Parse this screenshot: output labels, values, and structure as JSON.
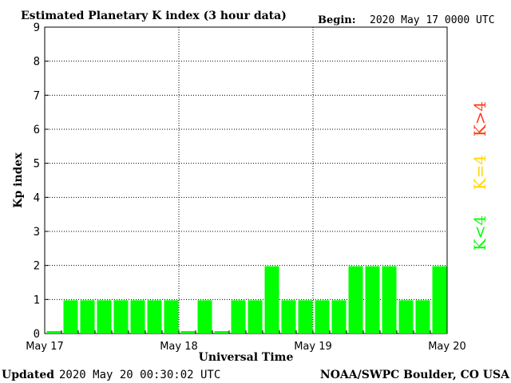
{
  "header": {
    "title": "Estimated Planetary K index (3 hour data)",
    "begin_label": "Begin:",
    "begin_value": "2020 May 17 0000 UTC"
  },
  "footer": {
    "updated_label": "Updated",
    "updated_value": "2020 May 20 00:30:02 UTC",
    "source": "NOAA/SWPC Boulder, CO USA"
  },
  "legend": {
    "high": "K>4",
    "mid": "K=4",
    "low": "K<4"
  },
  "colors": {
    "low": "#00ff00",
    "mid": "#ffd700",
    "high": "#ff3a1a",
    "grid": "#000000"
  },
  "chart_data": {
    "type": "bar",
    "title": "Estimated Planetary K index (3 hour data)",
    "xlabel": "Universal Time",
    "ylabel": "Kp index",
    "ylim": [
      0,
      9
    ],
    "yticks": [
      0,
      1,
      2,
      3,
      4,
      5,
      6,
      7,
      8,
      9
    ],
    "x_ticks": [
      "May 17",
      "May 18",
      "May 19",
      "May 20"
    ],
    "bins_per_day": 8,
    "values": [
      0,
      1,
      1,
      1,
      1,
      1,
      1,
      1,
      0,
      1,
      0,
      1,
      1,
      2,
      1,
      1,
      1,
      1,
      2,
      2,
      2,
      1,
      1,
      2
    ],
    "grid": true
  }
}
